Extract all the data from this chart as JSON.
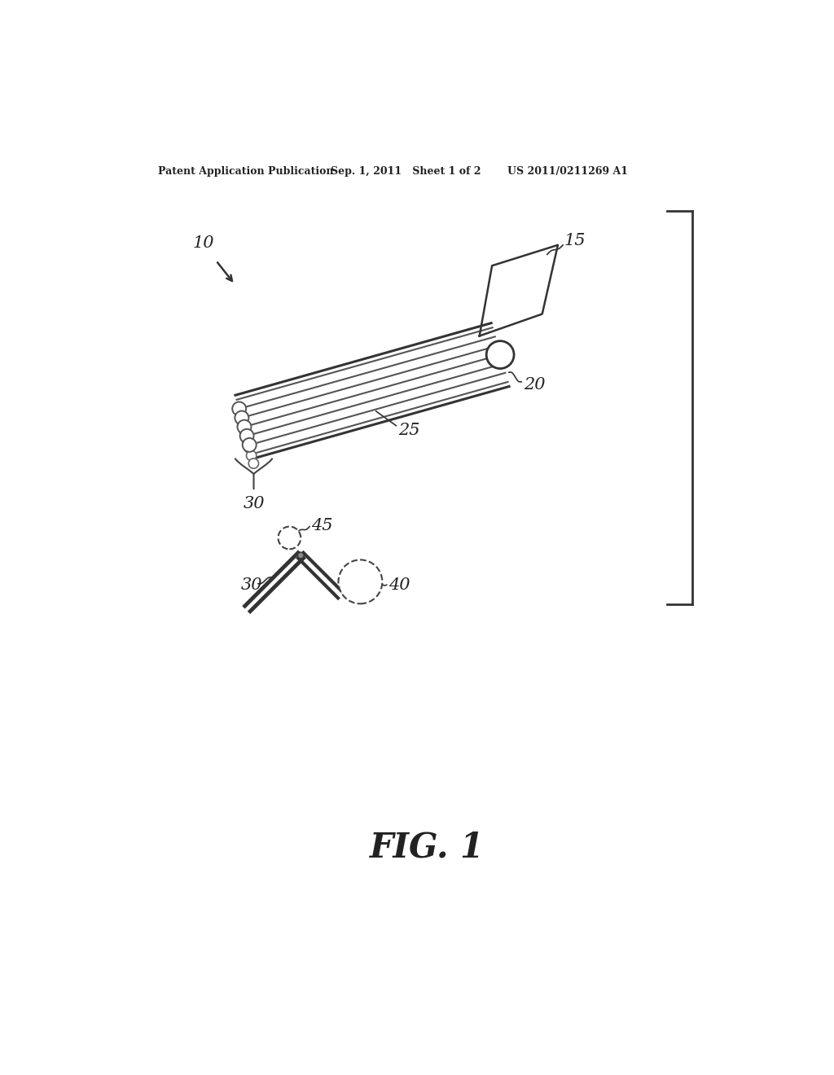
{
  "bg_color": "#ffffff",
  "header_left": "Patent Application Publication",
  "header_mid": "Sep. 1, 2011   Sheet 1 of 2",
  "header_right": "US 2011/0211269 A1",
  "fig_label": "FIG. 1",
  "label_10": "10",
  "label_15": "15",
  "label_20": "20",
  "label_25": "25",
  "label_30": "30",
  "label_40": "40",
  "label_45": "45",
  "line_color": "#333333",
  "text_color": "#222222"
}
